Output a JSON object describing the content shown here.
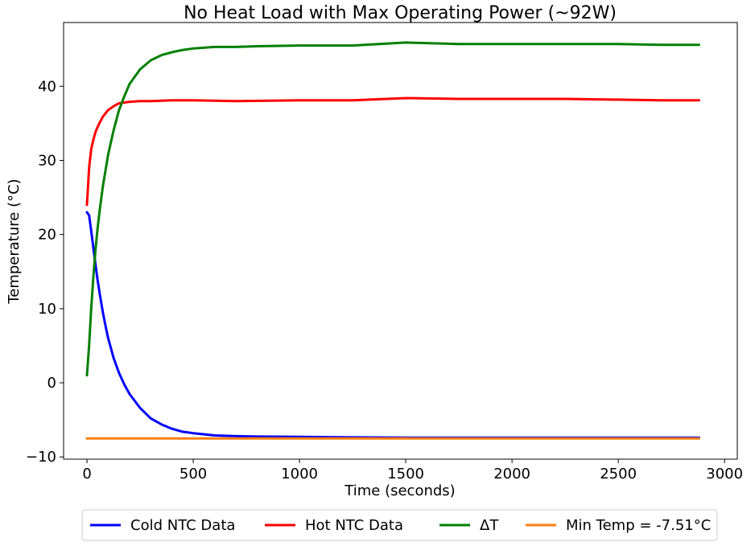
{
  "chart_data": {
    "type": "line",
    "title": "No Heat Load with Max Operating Power (~92W)",
    "xlabel": "Time (seconds)",
    "ylabel": "Temperature (°C)",
    "xlim": [
      -110,
      3060
    ],
    "ylim": [
      -10.3,
      48.6
    ],
    "xticks": [
      0,
      500,
      1000,
      1500,
      2000,
      2500,
      3000
    ],
    "yticks": [
      -10,
      0,
      10,
      20,
      30,
      40
    ],
    "xtick_labels": [
      "0",
      "500",
      "1000",
      "1500",
      "2000",
      "2500",
      "3000"
    ],
    "ytick_labels": [
      "−10",
      "0",
      "10",
      "20",
      "30",
      "40"
    ],
    "grid": false,
    "legend_position": "bottom-outside",
    "series": [
      {
        "name": "Cold NTC Data",
        "color": "#0000ff",
        "x": [
          0,
          10,
          20,
          30,
          40,
          50,
          60,
          75,
          90,
          100,
          125,
          150,
          175,
          200,
          250,
          300,
          350,
          400,
          450,
          500,
          600,
          700,
          800,
          1000,
          1200,
          1500,
          2000,
          2500,
          2880
        ],
        "y": [
          23.0,
          22.6,
          20.5,
          18.2,
          16.0,
          13.9,
          12.0,
          9.5,
          7.3,
          6.0,
          3.4,
          1.4,
          -0.2,
          -1.5,
          -3.4,
          -4.8,
          -5.6,
          -6.2,
          -6.6,
          -6.8,
          -7.1,
          -7.2,
          -7.25,
          -7.3,
          -7.35,
          -7.4,
          -7.4,
          -7.4,
          -7.4
        ]
      },
      {
        "name": "Hot NTC Data",
        "color": "#ff0000",
        "x": [
          0,
          5,
          10,
          20,
          30,
          40,
          50,
          60,
          75,
          100,
          125,
          150,
          200,
          250,
          300,
          400,
          500,
          700,
          1000,
          1250,
          1500,
          1750,
          2000,
          2250,
          2500,
          2700,
          2880
        ],
        "y": [
          24.0,
          26.5,
          29.0,
          31.5,
          32.8,
          33.8,
          34.5,
          35.1,
          35.9,
          36.8,
          37.3,
          37.7,
          37.9,
          38.0,
          38.0,
          38.1,
          38.1,
          38.0,
          38.1,
          38.1,
          38.4,
          38.3,
          38.3,
          38.3,
          38.2,
          38.1,
          38.1
        ]
      },
      {
        "name": "ΔT",
        "color": "#008000",
        "x": [
          0,
          10,
          20,
          30,
          40,
          50,
          60,
          75,
          100,
          125,
          150,
          175,
          200,
          250,
          300,
          350,
          400,
          450,
          500,
          600,
          700,
          800,
          1000,
          1250,
          1500,
          1750,
          2000,
          2250,
          2500,
          2700,
          2880
        ],
        "y": [
          1.0,
          5.0,
          10.0,
          14.3,
          17.9,
          20.8,
          23.3,
          26.5,
          30.8,
          34.0,
          36.7,
          38.6,
          40.3,
          42.3,
          43.5,
          44.2,
          44.6,
          44.9,
          45.1,
          45.3,
          45.3,
          45.4,
          45.5,
          45.5,
          45.9,
          45.7,
          45.7,
          45.7,
          45.7,
          45.6,
          45.6
        ]
      },
      {
        "name": "Min Temp = -7.51°C",
        "color": "#ff7f0e",
        "x": [
          0,
          2880
        ],
        "y": [
          -7.51,
          -7.51
        ]
      }
    ]
  }
}
